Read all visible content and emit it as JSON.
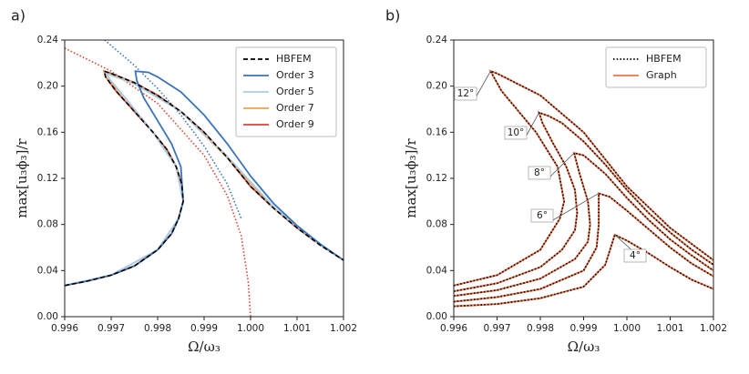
{
  "chart_data": [
    {
      "type": "line",
      "panel_label": "a)",
      "xlabel": "Ω/ω₃",
      "ylabel": "max[u₃ϕ₃]/r",
      "xlim": [
        0.996,
        1.002
      ],
      "ylim": [
        0,
        0.24
      ],
      "xticks": [
        0.996,
        0.997,
        0.998,
        0.999,
        {
          "value": 1,
          "label": "1.000"
        },
        1.001,
        1.002
      ],
      "yticks": [
        {
          "value": 0,
          "label": "0.00"
        },
        0.04,
        0.08,
        0.12,
        0.16,
        {
          "value": 0.2,
          "label": "0.20"
        },
        0.24
      ],
      "legend": "upper right",
      "series": [
        {
          "name": "HBFEM",
          "color": "#000000",
          "style": "dashed",
          "x": [
            0.996,
            0.9965,
            0.997,
            0.9975,
            0.998,
            0.9983,
            0.99845,
            0.99855,
            0.99852,
            0.9984,
            0.9982,
            0.9979,
            0.9975,
            0.9971,
            0.99688,
            0.99685,
            0.997,
            0.9975,
            0.998,
            0.9985,
            0.999,
            0.9995,
            1.0,
            1.0005,
            1.001,
            1.0015,
            1.002
          ],
          "values": [
            0.027,
            0.031,
            0.036,
            0.044,
            0.058,
            0.072,
            0.085,
            0.1,
            0.115,
            0.13,
            0.145,
            0.16,
            0.178,
            0.196,
            0.208,
            0.213,
            0.211,
            0.203,
            0.192,
            0.178,
            0.16,
            0.138,
            0.113,
            0.094,
            0.077,
            0.062,
            0.049
          ]
        },
        {
          "name": "Order 3",
          "color": "#3a73b8",
          "style": "solid",
          "x": [
            0.996,
            0.9965,
            0.997,
            0.9975,
            0.998,
            0.9983,
            0.99845,
            0.99855,
            0.9985,
            0.9983,
            0.998,
            0.9977,
            0.99755,
            0.99752,
            0.9978,
            0.998,
            0.9985,
            0.999,
            0.9995,
            1.0,
            1.0005,
            1.001,
            1.0015,
            1.002
          ],
          "values": [
            0.027,
            0.031,
            0.036,
            0.044,
            0.058,
            0.072,
            0.085,
            0.1,
            0.13,
            0.15,
            0.17,
            0.19,
            0.205,
            0.213,
            0.212,
            0.208,
            0.195,
            0.175,
            0.15,
            0.122,
            0.098,
            0.079,
            0.063,
            0.049
          ]
        },
        {
          "name": "Order 5",
          "color": "#a8cde8",
          "style": "solid",
          "x": [
            0.996,
            0.997,
            0.998,
            0.99845,
            0.99855,
            0.9984,
            0.9979,
            0.9973,
            0.99695,
            0.9969,
            0.9975,
            0.9985,
            0.9995,
            1.0005,
            1.0015,
            1.002
          ],
          "values": [
            0.027,
            0.036,
            0.058,
            0.085,
            0.1,
            0.13,
            0.16,
            0.19,
            0.207,
            0.211,
            0.202,
            0.178,
            0.139,
            0.095,
            0.062,
            0.049
          ]
        },
        {
          "name": "Order 7",
          "color": "#f0a050",
          "style": "solid",
          "x": [
            0.996,
            0.997,
            0.998,
            0.99845,
            0.99855,
            0.9984,
            0.9979,
            0.9973,
            0.99688,
            0.99686,
            0.9975,
            0.9985,
            0.9995,
            1.0005,
            1.0015,
            1.002
          ],
          "values": [
            0.027,
            0.036,
            0.058,
            0.085,
            0.1,
            0.13,
            0.16,
            0.19,
            0.208,
            0.212,
            0.203,
            0.178,
            0.138,
            0.094,
            0.062,
            0.049
          ]
        },
        {
          "name": "Order 9",
          "color": "#d9442b",
          "style": "solid",
          "x": [
            0.996,
            0.9965,
            0.997,
            0.9975,
            0.998,
            0.9983,
            0.99845,
            0.99855,
            0.99852,
            0.9984,
            0.9982,
            0.9979,
            0.9975,
            0.9971,
            0.99688,
            0.99685,
            0.997,
            0.9975,
            0.998,
            0.9985,
            0.999,
            0.9995,
            1.0,
            1.0005,
            1.001,
            1.0015,
            1.002
          ],
          "values": [
            0.027,
            0.031,
            0.036,
            0.044,
            0.058,
            0.072,
            0.085,
            0.1,
            0.115,
            0.13,
            0.145,
            0.16,
            0.178,
            0.196,
            0.208,
            0.213,
            0.211,
            0.203,
            0.192,
            0.178,
            0.16,
            0.138,
            0.113,
            0.094,
            0.077,
            0.062,
            0.049
          ]
        },
        {
          "color": "#3a73b8",
          "style": "dotted",
          "x": [
            0.99686,
            0.9975,
            0.998,
            0.9985,
            0.999,
            0.9995,
            0.9998
          ],
          "values": [
            0.24,
            0.218,
            0.198,
            0.175,
            0.148,
            0.115,
            0.085
          ]
        },
        {
          "color": "#d9442b",
          "style": "dotted",
          "x": [
            0.996,
            0.997,
            0.998,
            0.999,
            0.9995,
            0.9998,
            0.99995,
            1.0
          ],
          "values": [
            0.233,
            0.213,
            0.185,
            0.14,
            0.105,
            0.07,
            0.03,
            0
          ]
        }
      ]
    },
    {
      "type": "line",
      "panel_label": "b)",
      "xlabel": "Ω/ω₃",
      "ylabel": "max[u₃ϕ₃]/r",
      "xlim": [
        0.996,
        1.002
      ],
      "ylim": [
        0,
        0.24
      ],
      "xticks": [
        0.996,
        0.997,
        0.998,
        0.999,
        {
          "value": 1,
          "label": "1.000"
        },
        1.001,
        1.002
      ],
      "yticks": [
        {
          "value": 0,
          "label": "0.00"
        },
        0.04,
        0.08,
        0.12,
        0.16,
        {
          "value": 0.2,
          "label": "0.20"
        },
        0.24
      ],
      "legend": "upper right",
      "annotations": [
        "12°",
        "10°",
        "8°",
        "6°",
        "4°"
      ],
      "series": [
        {
          "name": "HBFEM",
          "color": "#000000",
          "style": "dotted",
          "curves": [
            {
              "x": [
                0.996,
                0.997,
                0.998,
                0.99845,
                0.99855,
                0.9984,
                0.9979,
                0.9971,
                0.99685,
                0.997,
                0.998,
                0.999,
                1.0,
                1.001,
                1.002
              ],
              "values": [
                0.027,
                0.036,
                0.058,
                0.085,
                0.1,
                0.13,
                0.16,
                0.196,
                0.213,
                0.211,
                0.192,
                0.16,
                0.113,
                0.077,
                0.049
              ]
            },
            {
              "x": [
                0.996,
                0.997,
                0.998,
                0.9985,
                0.9988,
                0.99885,
                0.9988,
                0.9986,
                0.9983,
                0.99805,
                0.99797,
                0.9982,
                0.9985,
                0.999,
                0.9995,
                1.0,
                1.0005,
                1.001,
                1.0015,
                1.002
              ],
              "values": [
                0.022,
                0.029,
                0.043,
                0.058,
                0.075,
                0.09,
                0.11,
                0.13,
                0.15,
                0.168,
                0.177,
                0.174,
                0.168,
                0.152,
                0.132,
                0.11,
                0.09,
                0.073,
                0.058,
                0.045
              ]
            },
            {
              "x": [
                0.996,
                0.997,
                0.998,
                0.9988,
                0.9991,
                0.99915,
                0.9991,
                0.9989,
                0.99878,
                0.999,
                0.9995,
                1.0,
                1.0005,
                1.001,
                1.0015,
                1.002
              ],
              "values": [
                0.018,
                0.023,
                0.033,
                0.05,
                0.065,
                0.08,
                0.1,
                0.125,
                0.142,
                0.14,
                0.124,
                0.103,
                0.084,
                0.067,
                0.053,
                0.04
              ]
            },
            {
              "x": [
                0.996,
                0.997,
                0.998,
                0.999,
                0.9993,
                0.99935,
                0.99935,
                0.9996,
                1.0,
                1.0005,
                1.001,
                1.0015,
                1.002
              ],
              "values": [
                0.013,
                0.017,
                0.024,
                0.04,
                0.06,
                0.08,
                0.107,
                0.104,
                0.092,
                0.076,
                0.06,
                0.046,
                0.035
              ]
            },
            {
              "x": [
                0.996,
                0.997,
                0.998,
                0.999,
                0.9995,
                0.99972,
                1.0,
                1.0005,
                1.001,
                1.0015,
                1.002
              ],
              "values": [
                0.009,
                0.011,
                0.016,
                0.026,
                0.045,
                0.071,
                0.066,
                0.055,
                0.043,
                0.032,
                0.024
              ]
            }
          ]
        },
        {
          "name": "Graph",
          "color": "#e8744a",
          "style": "solid",
          "curves": [
            {
              "x": [
                0.996,
                0.997,
                0.998,
                0.99845,
                0.99855,
                0.9984,
                0.9979,
                0.9971,
                0.99685,
                0.997,
                0.998,
                0.999,
                1.0,
                1.001,
                1.002
              ],
              "values": [
                0.027,
                0.036,
                0.058,
                0.085,
                0.1,
                0.13,
                0.16,
                0.196,
                0.213,
                0.211,
                0.192,
                0.16,
                0.113,
                0.077,
                0.049
              ]
            },
            {
              "x": [
                0.996,
                0.997,
                0.998,
                0.9985,
                0.9988,
                0.99885,
                0.9988,
                0.9986,
                0.9983,
                0.99805,
                0.99797,
                0.9982,
                0.9985,
                0.999,
                0.9995,
                1.0,
                1.0005,
                1.001,
                1.0015,
                1.002
              ],
              "values": [
                0.022,
                0.029,
                0.043,
                0.058,
                0.075,
                0.09,
                0.11,
                0.13,
                0.15,
                0.168,
                0.177,
                0.174,
                0.168,
                0.152,
                0.132,
                0.11,
                0.09,
                0.073,
                0.058,
                0.045
              ]
            },
            {
              "x": [
                0.996,
                0.997,
                0.998,
                0.9988,
                0.9991,
                0.99915,
                0.9991,
                0.9989,
                0.99878,
                0.999,
                0.9995,
                1.0,
                1.0005,
                1.001,
                1.0015,
                1.002
              ],
              "values": [
                0.018,
                0.023,
                0.033,
                0.05,
                0.065,
                0.08,
                0.1,
                0.125,
                0.142,
                0.14,
                0.124,
                0.103,
                0.084,
                0.067,
                0.053,
                0.04
              ]
            },
            {
              "x": [
                0.996,
                0.997,
                0.998,
                0.999,
                0.9993,
                0.99935,
                0.99935,
                0.9996,
                1.0,
                1.0005,
                1.001,
                1.0015,
                1.002
              ],
              "values": [
                0.013,
                0.017,
                0.024,
                0.04,
                0.06,
                0.08,
                0.107,
                0.104,
                0.092,
                0.076,
                0.06,
                0.046,
                0.035
              ]
            },
            {
              "x": [
                0.996,
                0.997,
                0.998,
                0.999,
                0.9995,
                0.99972,
                1.0,
                1.0005,
                1.001,
                1.0015,
                1.002
              ],
              "values": [
                0.009,
                0.011,
                0.016,
                0.026,
                0.045,
                0.071,
                0.066,
                0.055,
                0.043,
                0.032,
                0.024
              ]
            }
          ]
        }
      ]
    }
  ]
}
